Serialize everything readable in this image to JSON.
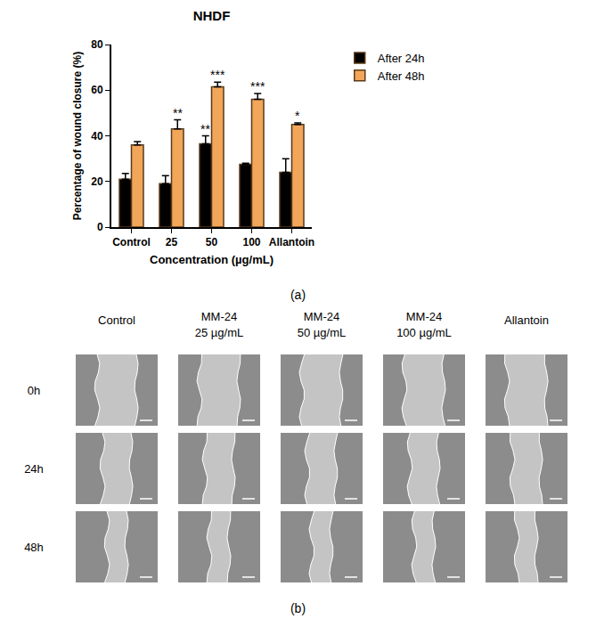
{
  "chart_data": {
    "type": "bar",
    "title": "NHDF",
    "x_label": "Concentration (µg/mL)",
    "y_label": "Percentage of wound closure (%)",
    "categories": [
      "Control",
      "25",
      "50",
      "100",
      "Allantoin"
    ],
    "series": [
      {
        "name": "After 24h",
        "color": "#000000",
        "values": [
          21,
          19,
          36.5,
          27.5,
          24
        ],
        "error": [
          2.5,
          3.5,
          3.5,
          0.5,
          6
        ],
        "significance": [
          null,
          null,
          "**",
          null,
          null
        ]
      },
      {
        "name": "After 48h",
        "color": "#f2a65a",
        "values": [
          36,
          43,
          61.5,
          56,
          45
        ],
        "error": [
          1.5,
          4,
          2,
          2.5,
          0.7
        ],
        "significance": [
          null,
          "**",
          "***",
          "***",
          "*"
        ]
      }
    ],
    "ylim": [
      0,
      80
    ],
    "yticks": [
      0,
      20,
      40,
      60,
      80
    ],
    "grid": false,
    "legend": "right"
  },
  "captions": {
    "a": "(a)",
    "b": "(b)"
  },
  "panel_b": {
    "column_heads": [
      [
        "Control"
      ],
      [
        "MM-24",
        "25 µg/mL"
      ],
      [
        "MM-24",
        "50 µg/mL"
      ],
      [
        "MM-24",
        "100 µg/mL"
      ],
      [
        "Allantoin"
      ]
    ],
    "row_labels": [
      "0h",
      "24h",
      "48h"
    ]
  }
}
